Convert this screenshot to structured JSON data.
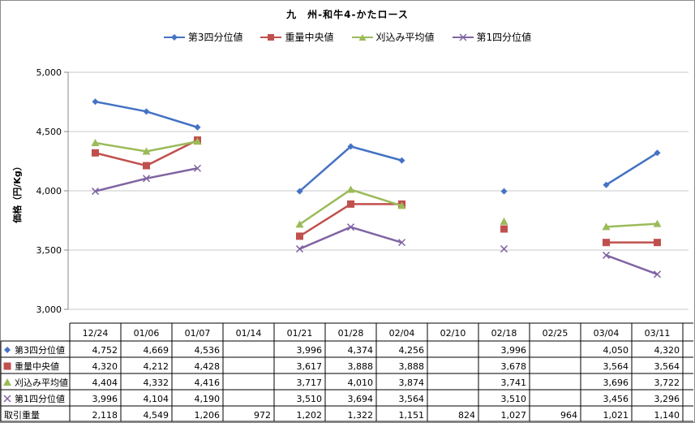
{
  "chart_data": {
    "type": "line",
    "title": "九　州-和牛4-かたロース",
    "ylabel": "価格（円/Kg）",
    "xlabel": "",
    "ylim": [
      3000,
      5000
    ],
    "yticks": [
      3000,
      3500,
      4000,
      4500,
      5000
    ],
    "ytick_labels": [
      "3,000",
      "3,500",
      "4,000",
      "4,500",
      "5,000"
    ],
    "grid": true,
    "legend_position": "top-center",
    "categories": [
      "12/24",
      "01/06",
      "01/07",
      "01/14",
      "01/21",
      "01/28",
      "02/04",
      "02/10",
      "02/18",
      "02/25",
      "03/04",
      "03/11"
    ],
    "series": [
      {
        "name": "第3四分位値",
        "color": "#4472c4",
        "marker": "diamond",
        "values": [
          4752,
          4669,
          4536,
          null,
          3996,
          4374,
          4256,
          null,
          3996,
          null,
          4050,
          4320
        ],
        "labels": [
          "4,752",
          "4,669",
          "4,536",
          "",
          "3,996",
          "4,374",
          "4,256",
          "",
          "3,996",
          "",
          "4,050",
          "4,320"
        ]
      },
      {
        "name": "重量中央値",
        "color": "#c0504d",
        "marker": "square",
        "values": [
          4320,
          4212,
          4428,
          null,
          3617,
          3888,
          3888,
          null,
          3678,
          null,
          3564,
          3564
        ],
        "labels": [
          "4,320",
          "4,212",
          "4,428",
          "",
          "3,617",
          "3,888",
          "3,888",
          "",
          "3,678",
          "",
          "3,564",
          "3,564"
        ]
      },
      {
        "name": "刈込み平均値",
        "color": "#9bbb59",
        "marker": "triangle",
        "values": [
          4404,
          4332,
          4416,
          null,
          3717,
          4010,
          3874,
          null,
          3741,
          null,
          3696,
          3722
        ],
        "labels": [
          "4,404",
          "4,332",
          "4,416",
          "",
          "3,717",
          "4,010",
          "3,874",
          "",
          "3,741",
          "",
          "3,696",
          "3,722"
        ]
      },
      {
        "name": "第1四分位値",
        "color": "#8064a2",
        "marker": "x",
        "values": [
          3996,
          4104,
          4190,
          null,
          3510,
          3694,
          3564,
          null,
          3510,
          null,
          3456,
          3296
        ],
        "labels": [
          "3,996",
          "4,104",
          "4,190",
          "",
          "3,510",
          "3,694",
          "3,564",
          "",
          "3,510",
          "",
          "3,456",
          "3,296"
        ]
      }
    ],
    "volume": {
      "name": "取引重量",
      "values": [
        2118,
        4549,
        1206,
        972,
        1202,
        1322,
        1151,
        824,
        1027,
        964,
        1021,
        1140
      ],
      "labels": [
        "2,118",
        "4,549",
        "1,206",
        "972",
        "1,202",
        "1,322",
        "1,151",
        "824",
        "1,027",
        "964",
        "1,021",
        "1,140"
      ]
    }
  }
}
